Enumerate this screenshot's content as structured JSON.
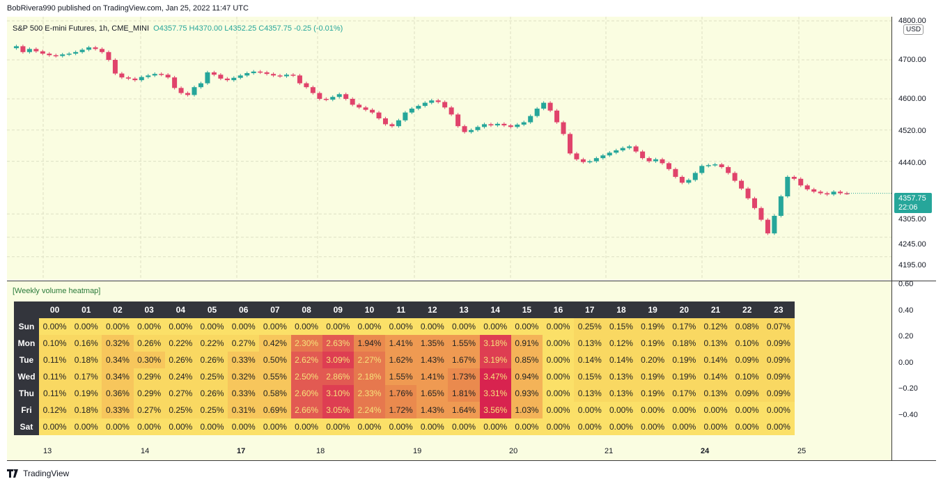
{
  "header": {
    "published": "BobRivera990 published on TradingView.com, Jan 25, 2022 11:47 UTC"
  },
  "legend": {
    "symbol": "S&P 500 E-mini Futures, 1h, CME_MINI",
    "ohlc": "O4357.75  H4370.00  L4352.25  C4357.75  -0.25 (-0.01%)"
  },
  "price_axis": {
    "currency": "USD",
    "labels": [
      "4800.00",
      "4700.00",
      "4600.00",
      "4520.00",
      "4440.00",
      "4305.00",
      "4245.00",
      "4195.00"
    ],
    "last_price": "4357.75",
    "countdown": "22:06"
  },
  "osc_axis": {
    "labels": [
      "0.60",
      "0.40",
      "0.20",
      "0.00",
      "−0.20",
      "−0.40"
    ]
  },
  "time_axis": {
    "labels": [
      "13",
      "14",
      "17",
      "18",
      "19",
      "20",
      "21",
      "24",
      "25"
    ]
  },
  "indicator": {
    "name": "[Weekly volume heatmap]"
  },
  "heatmap": {
    "hours": [
      "00",
      "01",
      "02",
      "03",
      "04",
      "05",
      "06",
      "07",
      "08",
      "09",
      "10",
      "11",
      "12",
      "13",
      "14",
      "15",
      "16",
      "17",
      "18",
      "19",
      "20",
      "21",
      "22",
      "23"
    ],
    "days": [
      "Sun",
      "Mon",
      "Tue",
      "Wed",
      "Thu",
      "Fri",
      "Sat"
    ],
    "values": [
      [
        "0.00%",
        "0.00%",
        "0.00%",
        "0.00%",
        "0.00%",
        "0.00%",
        "0.00%",
        "0.00%",
        "0.00%",
        "0.00%",
        "0.00%",
        "0.00%",
        "0.00%",
        "0.00%",
        "0.00%",
        "0.00%",
        "0.00%",
        "0.25%",
        "0.15%",
        "0.19%",
        "0.17%",
        "0.12%",
        "0.08%",
        "0.07%"
      ],
      [
        "0.10%",
        "0.16%",
        "0.32%",
        "0.26%",
        "0.22%",
        "0.22%",
        "0.27%",
        "0.42%",
        "2.30%",
        "2.63%",
        "1.94%",
        "1.41%",
        "1.35%",
        "1.55%",
        "3.18%",
        "0.91%",
        "0.00%",
        "0.13%",
        "0.12%",
        "0.19%",
        "0.18%",
        "0.13%",
        "0.10%",
        "0.09%"
      ],
      [
        "0.11%",
        "0.18%",
        "0.34%",
        "0.30%",
        "0.26%",
        "0.26%",
        "0.33%",
        "0.50%",
        "2.62%",
        "3.09%",
        "2.27%",
        "1.62%",
        "1.43%",
        "1.67%",
        "3.19%",
        "0.85%",
        "0.00%",
        "0.14%",
        "0.14%",
        "0.20%",
        "0.19%",
        "0.14%",
        "0.09%",
        "0.09%"
      ],
      [
        "0.11%",
        "0.17%",
        "0.34%",
        "0.29%",
        "0.24%",
        "0.25%",
        "0.32%",
        "0.55%",
        "2.50%",
        "2.86%",
        "2.18%",
        "1.55%",
        "1.41%",
        "1.73%",
        "3.47%",
        "0.94%",
        "0.00%",
        "0.15%",
        "0.13%",
        "0.19%",
        "0.19%",
        "0.14%",
        "0.10%",
        "0.09%"
      ],
      [
        "0.11%",
        "0.19%",
        "0.36%",
        "0.29%",
        "0.27%",
        "0.26%",
        "0.33%",
        "0.58%",
        "2.60%",
        "3.10%",
        "2.33%",
        "1.76%",
        "1.65%",
        "1.81%",
        "3.31%",
        "0.93%",
        "0.00%",
        "0.13%",
        "0.13%",
        "0.19%",
        "0.17%",
        "0.13%",
        "0.09%",
        "0.09%"
      ],
      [
        "0.12%",
        "0.18%",
        "0.33%",
        "0.27%",
        "0.25%",
        "0.25%",
        "0.31%",
        "0.69%",
        "2.66%",
        "3.05%",
        "2.24%",
        "1.72%",
        "1.43%",
        "1.64%",
        "3.56%",
        "1.03%",
        "0.00%",
        "0.00%",
        "0.00%",
        "0.00%",
        "0.00%",
        "0.00%",
        "0.00%",
        "0.00%"
      ],
      [
        "0.00%",
        "0.00%",
        "0.00%",
        "0.00%",
        "0.00%",
        "0.00%",
        "0.00%",
        "0.00%",
        "0.00%",
        "0.00%",
        "0.00%",
        "0.00%",
        "0.00%",
        "0.00%",
        "0.00%",
        "0.00%",
        "0.00%",
        "0.00%",
        "0.00%",
        "0.00%",
        "0.00%",
        "0.00%",
        "0.00%",
        "0.00%"
      ]
    ]
  },
  "price_path": [
    4730,
    4735,
    4720,
    4728,
    4722,
    4716,
    4712,
    4710,
    4714,
    4716,
    4720,
    4726,
    4732,
    4728,
    4720,
    4700,
    4665,
    4655,
    4652,
    4648,
    4656,
    4660,
    4664,
    4662,
    4655,
    4628,
    4615,
    4610,
    4630,
    4640,
    4668,
    4662,
    4652,
    4648,
    4654,
    4660,
    4666,
    4670,
    4668,
    4664,
    4660,
    4658,
    4662,
    4660,
    4640,
    4630,
    4615,
    4600,
    4598,
    4605,
    4612,
    4600,
    4585,
    4578,
    4572,
    4565,
    4550,
    4535,
    4530,
    4545,
    4565,
    4575,
    4582,
    4590,
    4596,
    4592,
    4578,
    4560,
    4530,
    4515,
    4520,
    4528,
    4535,
    4532,
    4536,
    4532,
    4528,
    4534,
    4540,
    4556,
    4575,
    4590,
    4570,
    4540,
    4510,
    4460,
    4445,
    4438,
    4440,
    4448,
    4455,
    4462,
    4468,
    4474,
    4478,
    4465,
    4448,
    4440,
    4445,
    4435,
    4420,
    4400,
    4385,
    4392,
    4410,
    4428,
    4430,
    4432,
    4425,
    4410,
    4390,
    4370,
    4345,
    4320,
    4290,
    4255,
    4300,
    4350,
    4400,
    4395,
    4378,
    4368,
    4362,
    4358,
    4355,
    4362,
    4358,
    4357.75
  ]
}
